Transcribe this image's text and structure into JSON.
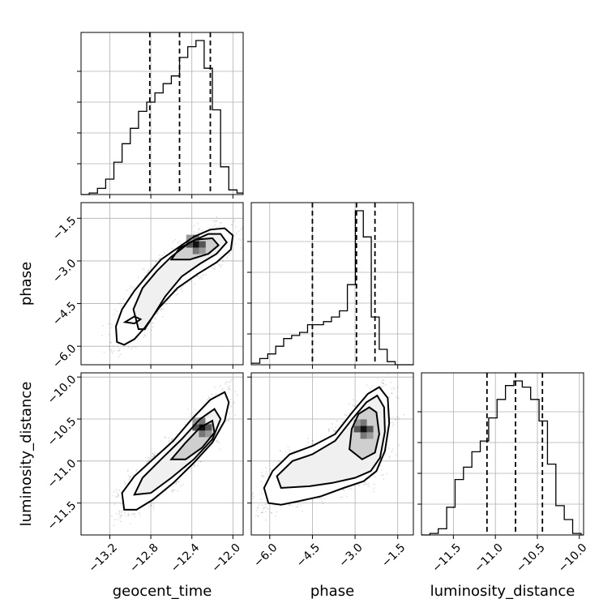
{
  "chart_data": {
    "type": "corner",
    "parameters": [
      "geocent_time",
      "phase",
      "luminosity_distance"
    ],
    "axis_labels": {
      "x": [
        "geocent_time",
        "phase",
        "luminosity_distance"
      ],
      "y": [
        "phase",
        "luminosity_distance"
      ]
    },
    "ranges": {
      "geocent_time": [
        -13.48,
        -11.9
      ],
      "phase": [
        -6.65,
        -0.95
      ],
      "luminosity_distance": [
        -11.88,
        -9.95
      ]
    },
    "ticks": {
      "geocent_time": [
        -13.2,
        -12.8,
        -12.4,
        -12.0
      ],
      "phase": [
        -6.0,
        -4.5,
        -3.0,
        -1.5
      ],
      "luminosity_distance": [
        -11.5,
        -11.0,
        -10.5,
        -10.0
      ]
    },
    "tick_labels": {
      "geocent_time": [
        "−13.2",
        "−12.8",
        "−12.4",
        "−12.0"
      ],
      "phase": [
        "−6.0",
        "−4.5",
        "−3.0",
        "−1.5"
      ],
      "luminosity_distance": [
        "−11.5",
        "−11.0",
        "−10.5",
        "−10.0"
      ]
    },
    "grid": true,
    "histograms": [
      {
        "parameter": "geocent_time",
        "bin_edges": [
          -13.48,
          -13.4,
          -13.32,
          -13.24,
          -13.16,
          -13.08,
          -13.0,
          -12.92,
          -12.84,
          -12.76,
          -12.68,
          -12.6,
          -12.52,
          -12.44,
          -12.36,
          -12.28,
          -12.2,
          -12.12,
          -12.04,
          -11.96,
          -11.9
        ],
        "counts": [
          0.0,
          0.01,
          0.04,
          0.1,
          0.21,
          0.33,
          0.43,
          0.54,
          0.6,
          0.66,
          0.72,
          0.77,
          0.89,
          0.96,
          1.0,
          0.82,
          0.55,
          0.18,
          0.03,
          0.01
        ],
        "quantiles": [
          -12.81,
          -12.52,
          -12.22
        ]
      },
      {
        "parameter": "phase",
        "bin_edges": [
          -6.65,
          -6.35,
          -6.07,
          -5.79,
          -5.51,
          -5.23,
          -4.95,
          -4.67,
          -4.39,
          -4.11,
          -3.83,
          -3.55,
          -3.27,
          -2.99,
          -2.71,
          -2.43,
          -2.15,
          -1.87,
          -1.59,
          -1.31,
          -0.95
        ],
        "counts": [
          0.01,
          0.04,
          0.07,
          0.12,
          0.17,
          0.19,
          0.21,
          0.26,
          0.26,
          0.28,
          0.31,
          0.35,
          0.52,
          1.0,
          0.83,
          0.31,
          0.1,
          0.02,
          0.0,
          0.0
        ],
        "quantiles": [
          -4.5,
          -2.95,
          -2.3
        ]
      },
      {
        "parameter": "luminosity_distance",
        "bin_edges": [
          -11.88,
          -11.78,
          -11.68,
          -11.58,
          -11.48,
          -11.38,
          -11.28,
          -11.18,
          -11.08,
          -10.98,
          -10.88,
          -10.78,
          -10.68,
          -10.58,
          -10.48,
          -10.38,
          -10.28,
          -10.18,
          -10.08,
          -9.98,
          -9.95
        ],
        "counts": [
          0.0,
          0.01,
          0.04,
          0.18,
          0.36,
          0.44,
          0.54,
          0.61,
          0.76,
          0.88,
          0.97,
          1.0,
          0.96,
          0.88,
          0.74,
          0.46,
          0.19,
          0.1,
          0.01,
          0.0
        ],
        "quantiles": [
          -11.1,
          -10.76,
          -10.44
        ]
      }
    ],
    "scatter_panels": [
      {
        "x_parameter": "geocent_time",
        "y_parameter": "phase",
        "contours": [
          {
            "level": "outer",
            "path": [
              [
                -13.13,
                -5.85
              ],
              [
                -13.14,
                -5.3
              ],
              [
                -13.08,
                -4.7
              ],
              [
                -12.96,
                -4.05
              ],
              [
                -12.82,
                -3.45
              ],
              [
                -12.7,
                -2.95
              ],
              [
                -12.54,
                -2.55
              ],
              [
                -12.38,
                -2.15
              ],
              [
                -12.22,
                -1.9
              ],
              [
                -12.08,
                -1.85
              ],
              [
                -12.0,
                -2.1
              ],
              [
                -12.02,
                -2.6
              ],
              [
                -12.16,
                -3.05
              ],
              [
                -12.34,
                -3.45
              ],
              [
                -12.54,
                -3.95
              ],
              [
                -12.72,
                -4.65
              ],
              [
                -12.86,
                -5.35
              ],
              [
                -12.96,
                -5.75
              ],
              [
                -13.06,
                -5.95
              ],
              [
                -13.13,
                -5.85
              ]
            ]
          },
          {
            "level": "middle",
            "path": [
              [
                -12.92,
                -5.4
              ],
              [
                -12.97,
                -4.7
              ],
              [
                -12.88,
                -3.95
              ],
              [
                -12.74,
                -3.35
              ],
              [
                -12.6,
                -2.85
              ],
              [
                -12.42,
                -2.35
              ],
              [
                -12.24,
                -2.05
              ],
              [
                -12.12,
                -2.05
              ],
              [
                -12.06,
                -2.35
              ],
              [
                -12.16,
                -2.75
              ],
              [
                -12.32,
                -3.1
              ],
              [
                -12.5,
                -3.55
              ],
              [
                -12.66,
                -4.25
              ],
              [
                -12.78,
                -4.95
              ],
              [
                -12.86,
                -5.4
              ],
              [
                -12.92,
                -5.4
              ]
            ]
          },
          {
            "level": "inner",
            "path": [
              [
                -12.6,
                -2.95
              ],
              [
                -12.52,
                -2.55
              ],
              [
                -12.36,
                -2.25
              ],
              [
                -12.2,
                -2.2
              ],
              [
                -12.14,
                -2.45
              ],
              [
                -12.24,
                -2.75
              ],
              [
                -12.42,
                -2.95
              ],
              [
                -12.6,
                -2.95
              ]
            ]
          },
          {
            "level": "island",
            "path": [
              [
                -13.05,
                -5.15
              ],
              [
                -12.96,
                -4.95
              ],
              [
                -12.9,
                -5.05
              ],
              [
                -12.96,
                -5.2
              ],
              [
                -13.05,
                -5.15
              ]
            ]
          }
        ],
        "density_peak": [
          -12.36,
          -2.42
        ]
      },
      {
        "x_parameter": "geocent_time",
        "y_parameter": "luminosity_distance",
        "contours": [
          {
            "level": "outer",
            "path": [
              [
                -13.06,
                -11.58
              ],
              [
                -13.08,
                -11.38
              ],
              [
                -12.96,
                -11.18
              ],
              [
                -12.78,
                -10.98
              ],
              [
                -12.58,
                -10.76
              ],
              [
                -12.4,
                -10.5
              ],
              [
                -12.22,
                -10.27
              ],
              [
                -12.08,
                -10.18
              ],
              [
                -12.04,
                -10.3
              ],
              [
                -12.08,
                -10.52
              ],
              [
                -12.2,
                -10.78
              ],
              [
                -12.38,
                -11.02
              ],
              [
                -12.58,
                -11.26
              ],
              [
                -12.78,
                -11.46
              ],
              [
                -12.94,
                -11.58
              ],
              [
                -13.06,
                -11.58
              ]
            ]
          },
          {
            "level": "middle",
            "path": [
              [
                -12.96,
                -11.4
              ],
              [
                -12.88,
                -11.2
              ],
              [
                -12.7,
                -10.98
              ],
              [
                -12.5,
                -10.74
              ],
              [
                -12.32,
                -10.5
              ],
              [
                -12.18,
                -10.38
              ],
              [
                -12.12,
                -10.5
              ],
              [
                -12.2,
                -10.74
              ],
              [
                -12.38,
                -10.98
              ],
              [
                -12.6,
                -11.2
              ],
              [
                -12.8,
                -11.38
              ],
              [
                -12.96,
                -11.4
              ]
            ]
          },
          {
            "level": "inner",
            "path": [
              [
                -12.6,
                -10.98
              ],
              [
                -12.46,
                -10.78
              ],
              [
                -12.32,
                -10.6
              ],
              [
                -12.2,
                -10.52
              ],
              [
                -12.18,
                -10.66
              ],
              [
                -12.3,
                -10.84
              ],
              [
                -12.46,
                -10.98
              ],
              [
                -12.6,
                -10.98
              ]
            ]
          }
        ],
        "density_peak": [
          -12.3,
          -10.6
        ]
      },
      {
        "x_parameter": "phase",
        "y_parameter": "luminosity_distance",
        "contours": [
          {
            "level": "outer",
            "path": [
              [
                -6.05,
                -11.5
              ],
              [
                -6.2,
                -11.32
              ],
              [
                -5.9,
                -11.12
              ],
              [
                -5.3,
                -10.92
              ],
              [
                -4.5,
                -10.82
              ],
              [
                -3.7,
                -10.68
              ],
              [
                -3.1,
                -10.42
              ],
              [
                -2.55,
                -10.2
              ],
              [
                -2.15,
                -10.12
              ],
              [
                -1.85,
                -10.25
              ],
              [
                -1.8,
                -10.55
              ],
              [
                -1.95,
                -10.88
              ],
              [
                -2.25,
                -11.12
              ],
              [
                -2.7,
                -11.24
              ],
              [
                -3.4,
                -11.32
              ],
              [
                -4.2,
                -11.42
              ],
              [
                -5.0,
                -11.48
              ],
              [
                -5.6,
                -11.52
              ],
              [
                -6.05,
                -11.5
              ]
            ]
          },
          {
            "level": "middle",
            "path": [
              [
                -5.6,
                -11.32
              ],
              [
                -5.75,
                -11.18
              ],
              [
                -5.2,
                -11.0
              ],
              [
                -4.5,
                -10.92
              ],
              [
                -3.7,
                -10.76
              ],
              [
                -3.1,
                -10.5
              ],
              [
                -2.6,
                -10.3
              ],
              [
                -2.22,
                -10.22
              ],
              [
                -1.98,
                -10.36
              ],
              [
                -1.95,
                -10.65
              ],
              [
                -2.12,
                -10.96
              ],
              [
                -2.45,
                -11.12
              ],
              [
                -3.0,
                -11.2
              ],
              [
                -3.8,
                -11.26
              ],
              [
                -4.6,
                -11.3
              ],
              [
                -5.6,
                -11.32
              ]
            ]
          },
          {
            "level": "inner",
            "path": [
              [
                -3.2,
                -10.86
              ],
              [
                -3.12,
                -10.62
              ],
              [
                -2.88,
                -10.44
              ],
              [
                -2.5,
                -10.36
              ],
              [
                -2.25,
                -10.42
              ],
              [
                -2.15,
                -10.68
              ],
              [
                -2.3,
                -10.9
              ],
              [
                -2.75,
                -10.98
              ],
              [
                -3.2,
                -10.86
              ]
            ]
          }
        ],
        "density_peak": [
          -2.7,
          -10.62
        ]
      }
    ]
  }
}
